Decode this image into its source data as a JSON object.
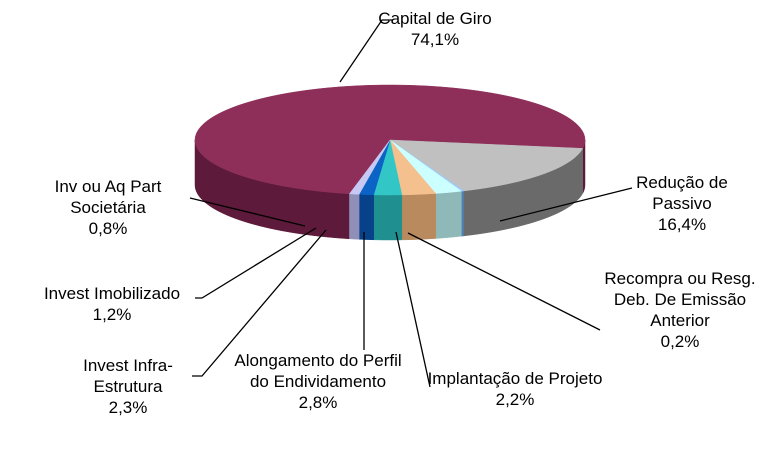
{
  "chart_data": {
    "type": "pie",
    "categories": [
      "Capital de Giro",
      "Redução de Passivo",
      "Recompra ou Resg. Deb. De Emissão Anterior",
      "Implantação de Projeto",
      "Alongamento do Perfil do Endividamento",
      "Invest Infra-Estrutura",
      "Invest Imobilizado",
      "Inv ou Aq Part Societária"
    ],
    "values": [
      74.1,
      16.4,
      0.2,
      2.2,
      2.8,
      2.3,
      1.2,
      0.8
    ],
    "value_labels": [
      "74,1%",
      "16,4%",
      "0,2%",
      "2,2%",
      "2,8%",
      "2,3%",
      "1,2%",
      "0,8%"
    ],
    "colors": [
      "#8e2f5a",
      "#c0c0c0",
      "#99ccff",
      "#ccffff",
      "#f4c08e",
      "#33c6c6",
      "#0b63c6",
      "#c8c8f4"
    ],
    "side_colors": [
      "#5e1a3a",
      "#6a6a6a",
      "#4f7fb0",
      "#8fb8b8",
      "#b88a5e",
      "#1f8f8f",
      "#06418a",
      "#8f8fb8"
    ]
  }
}
